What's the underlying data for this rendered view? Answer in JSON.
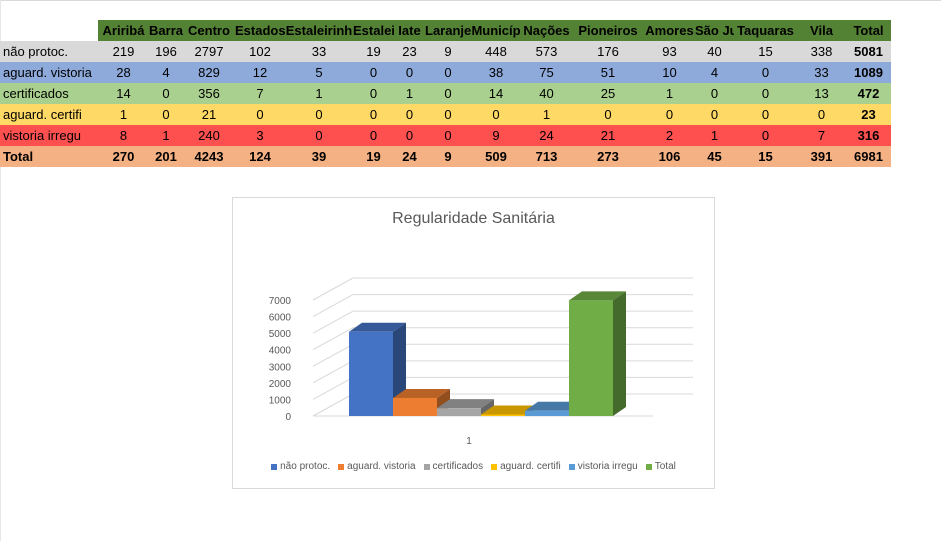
{
  "table": {
    "columns": [
      "Ariribá",
      "Barra",
      "Centro",
      "Estados",
      "Estaleirinh",
      "Estaleiro",
      "Iate",
      "Laranjei",
      "Municíp",
      "Nações",
      "Pioneiros",
      "Amores",
      "São Jud",
      "Taquaras",
      "Vila",
      "Total"
    ],
    "rows": [
      {
        "label": "não protoc.",
        "values": [
          "219",
          "196",
          "2797",
          "102",
          "33",
          "19",
          "23",
          "9",
          "448",
          "573",
          "176",
          "93",
          "40",
          "15",
          "338",
          "5081"
        ]
      },
      {
        "label": "aguard. vistoria",
        "values": [
          "28",
          "4",
          "829",
          "12",
          "5",
          "0",
          "0",
          "0",
          "38",
          "75",
          "51",
          "10",
          "4",
          "0",
          "33",
          "1089"
        ]
      },
      {
        "label": "certificados",
        "values": [
          "14",
          "0",
          "356",
          "7",
          "1",
          "0",
          "1",
          "0",
          "14",
          "40",
          "25",
          "1",
          "0",
          "0",
          "13",
          "472"
        ]
      },
      {
        "label": "aguard. certifi",
        "values": [
          "1",
          "0",
          "21",
          "0",
          "0",
          "0",
          "0",
          "0",
          "0",
          "1",
          "0",
          "0",
          "0",
          "0",
          "0",
          "23"
        ]
      },
      {
        "label": "vistoria irregu",
        "values": [
          "8",
          "1",
          "240",
          "3",
          "0",
          "0",
          "0",
          "0",
          "9",
          "24",
          "21",
          "2",
          "1",
          "0",
          "7",
          "316"
        ]
      },
      {
        "label": "Total",
        "values": [
          "270",
          "201",
          "4243",
          "124",
          "39",
          "19",
          "24",
          "9",
          "509",
          "713",
          "273",
          "106",
          "45",
          "15",
          "391",
          "6981"
        ]
      }
    ]
  },
  "chart_data": {
    "type": "bar",
    "title": "Regularidade Sanitária",
    "categories": [
      "1"
    ],
    "ylim": [
      0,
      7000
    ],
    "yticks": [
      "0",
      "1000",
      "2000",
      "3000",
      "4000",
      "5000",
      "6000",
      "7000"
    ],
    "series": [
      {
        "name": "não protoc.",
        "values": [
          5081
        ],
        "color": "#4472c4"
      },
      {
        "name": "aguard. vistoria",
        "values": [
          1089
        ],
        "color": "#ed7d31"
      },
      {
        "name": "certificados",
        "values": [
          472
        ],
        "color": "#a5a5a5"
      },
      {
        "name": "aguard. certifi",
        "values": [
          23
        ],
        "color": "#ffc000"
      },
      {
        "name": "vistoria irregu",
        "values": [
          316
        ],
        "color": "#5b9bd5"
      },
      {
        "name": "Total",
        "values": [
          6981
        ],
        "color": "#70ad47"
      }
    ]
  }
}
